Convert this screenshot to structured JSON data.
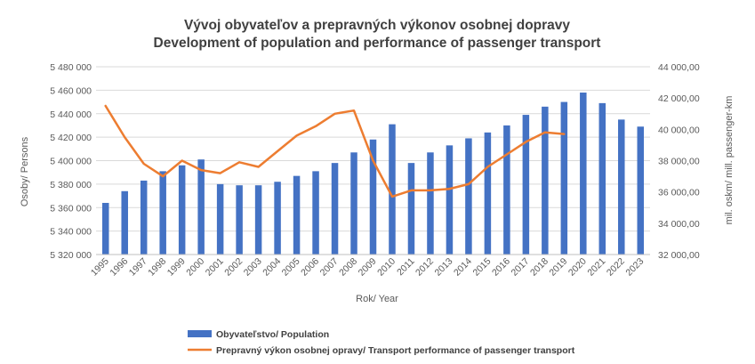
{
  "chart_data": {
    "type": "bar",
    "title": "Vývoj obyvateľov a prepravných výkonov osobnej dopravy",
    "subtitle": "Development of population and performance of passenger transport",
    "xlabel": "Rok/ Year",
    "ylabel": "Osoby/ Persons",
    "y2label": "mil. oskm/ mill. passenger-km",
    "ylim": [
      5320000,
      5480000
    ],
    "y2lim": [
      32000,
      44000
    ],
    "yticks": [
      "5 320 000",
      "5 340 000",
      "5 360 000",
      "5 380 000",
      "5 400 000",
      "5 420 000",
      "5 440 000",
      "5 460 000",
      "5 480 000"
    ],
    "y2ticks": [
      "32 000,00",
      "34 000,00",
      "36 000,00",
      "38 000,00",
      "40 000,00",
      "42 000,00",
      "44 000,00"
    ],
    "categories": [
      "1995",
      "1996",
      "1997",
      "1998",
      "1999",
      "2000",
      "2001",
      "2002",
      "2003",
      "2004",
      "2005",
      "2006",
      "2007",
      "2008",
      "2009",
      "2010",
      "2011",
      "2012",
      "2013",
      "2014",
      "2015",
      "2016",
      "2017",
      "2018",
      "2019",
      "2020",
      "2021",
      "2022",
      "2023"
    ],
    "grid": true,
    "legend_position": "bottom",
    "series": [
      {
        "name": "Obyvateľstvo/ Population",
        "type": "bar",
        "axis": "left",
        "color": "#4472c4",
        "values": [
          5364000,
          5374000,
          5383000,
          5391000,
          5396000,
          5401000,
          5380000,
          5379000,
          5379000,
          5382000,
          5387000,
          5391000,
          5398000,
          5407000,
          5418000,
          5431000,
          5398000,
          5407000,
          5413000,
          5419000,
          5424000,
          5430000,
          5439000,
          5446000,
          5450000,
          5458000,
          5449000,
          5435000,
          5429000
        ]
      },
      {
        "name": "Prepravný výkon osobnej opravy/ Transport performance of passenger transport",
        "type": "line",
        "axis": "right",
        "color": "#ed7d31",
        "values": [
          41500,
          39500,
          37800,
          37000,
          38000,
          37400,
          37200,
          37900,
          37600,
          38600,
          39600,
          40200,
          41000,
          41200,
          38000,
          35700,
          36100,
          36100,
          36200,
          36500,
          37600,
          38400,
          39200,
          39800,
          39700,
          null,
          null,
          null,
          null
        ]
      }
    ]
  },
  "colors": {
    "bar": "#4472c4",
    "line": "#ed7d31",
    "grid": "#d9d9d9",
    "text": "#595959",
    "title": "#404040"
  }
}
